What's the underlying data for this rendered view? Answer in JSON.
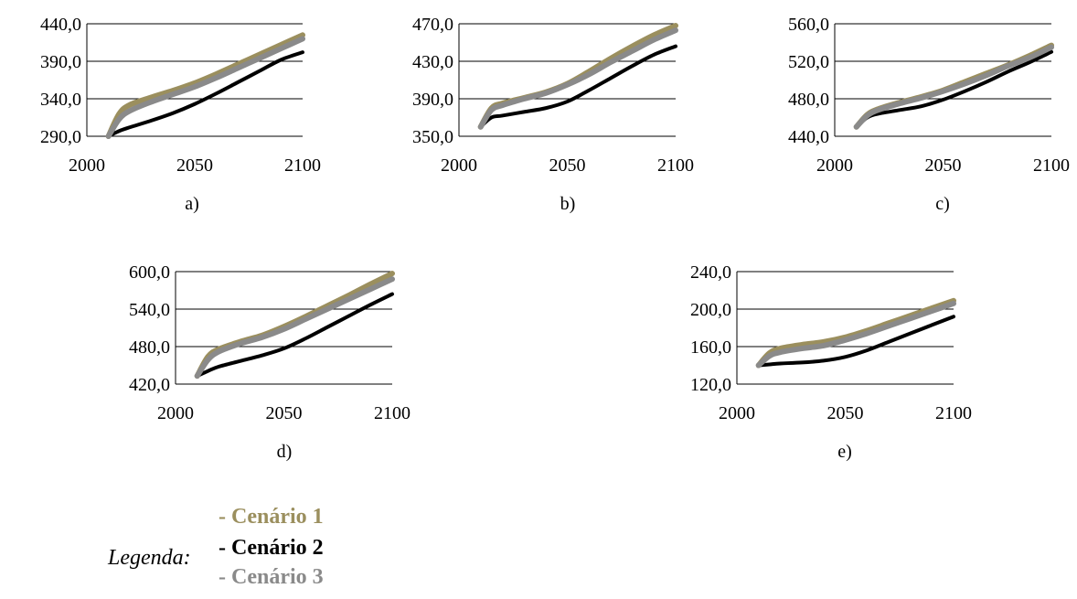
{
  "colors": {
    "cenario1": "#9b8f5e",
    "cenario2": "#000000",
    "cenario3": "#8a8a8a",
    "grid": "#000000"
  },
  "legend": {
    "title": "Legenda:",
    "items": [
      {
        "label": "- Cenário 1",
        "color": "#9b8f5e"
      },
      {
        "label": "- Cenário 2",
        "color": "#000000"
      },
      {
        "label": "- Cenário 3",
        "color": "#8a8a8a"
      }
    ]
  },
  "chart_data": [
    {
      "type": "line",
      "caption": "a)",
      "xlim": [
        2000,
        2100
      ],
      "xticks": [
        "2000",
        "2050",
        "2100"
      ],
      "ylim": [
        290,
        440
      ],
      "yticks": [
        "290,0",
        "340,0",
        "390,0",
        "440,0"
      ],
      "x": [
        2010,
        2015,
        2020,
        2030,
        2040,
        2050,
        2060,
        2070,
        2080,
        2090,
        2100
      ],
      "series": [
        {
          "values": [
            290,
            320,
            332,
            342,
            351,
            361,
            373,
            386,
            399,
            412,
            425
          ]
        },
        {
          "values": [
            290,
            297,
            302,
            311,
            321,
            333,
            347,
            362,
            377,
            392,
            402
          ]
        },
        {
          "values": [
            290,
            313,
            324,
            336,
            346,
            356,
            368,
            381,
            394,
            407,
            420
          ]
        }
      ]
    },
    {
      "type": "line",
      "caption": "b)",
      "xlim": [
        2000,
        2100
      ],
      "xticks": [
        "2000",
        "2050",
        "2100"
      ],
      "ylim": [
        350,
        470
      ],
      "yticks": [
        "350,0",
        "390,0",
        "430,0",
        "470,0"
      ],
      "x": [
        2010,
        2015,
        2020,
        2030,
        2040,
        2050,
        2060,
        2070,
        2080,
        2090,
        2100
      ],
      "series": [
        {
          "values": [
            360,
            380,
            385,
            391,
            397,
            406,
            419,
            433,
            446,
            458,
            468
          ]
        },
        {
          "values": [
            360,
            370,
            372,
            376,
            380,
            387,
            399,
            412,
            425,
            437,
            446
          ]
        },
        {
          "values": [
            360,
            378,
            383,
            390,
            396,
            405,
            416,
            429,
            441,
            453,
            463
          ]
        }
      ]
    },
    {
      "type": "line",
      "caption": "c)",
      "xlim": [
        2000,
        2100
      ],
      "xticks": [
        "2000",
        "2050",
        "2100"
      ],
      "ylim": [
        440,
        560
      ],
      "yticks": [
        "440,0",
        "480,0",
        "520,0",
        "560,0"
      ],
      "x": [
        2010,
        2015,
        2020,
        2030,
        2040,
        2050,
        2060,
        2070,
        2080,
        2090,
        2100
      ],
      "series": [
        {
          "values": [
            450,
            463,
            469,
            476,
            482,
            489,
            498,
            507,
            516,
            526,
            537
          ]
        },
        {
          "values": [
            450,
            460,
            464,
            468,
            472,
            479,
            488,
            498,
            509,
            519,
            530
          ]
        },
        {
          "values": [
            450,
            462,
            468,
            475,
            481,
            488,
            496,
            505,
            515,
            524,
            535
          ]
        }
      ]
    },
    {
      "type": "line",
      "caption": "d)",
      "xlim": [
        2000,
        2100
      ],
      "xticks": [
        "2000",
        "2050",
        "2100"
      ],
      "ylim": [
        420,
        600
      ],
      "yticks": [
        "420,0",
        "480,0",
        "540,0",
        "600,0"
      ],
      "x": [
        2010,
        2015,
        2020,
        2030,
        2040,
        2050,
        2060,
        2070,
        2080,
        2090,
        2100
      ],
      "series": [
        {
          "values": [
            433,
            464,
            476,
            488,
            498,
            512,
            528,
            545,
            562,
            580,
            597
          ]
        },
        {
          "values": [
            433,
            441,
            448,
            457,
            466,
            477,
            493,
            511,
            529,
            547,
            564
          ]
        },
        {
          "values": [
            433,
            459,
            472,
            485,
            495,
            508,
            524,
            540,
            556,
            572,
            588
          ]
        }
      ]
    },
    {
      "type": "line",
      "caption": "e)",
      "xlim": [
        2000,
        2100
      ],
      "xticks": [
        "2000",
        "2050",
        "2100"
      ],
      "ylim": [
        120,
        240
      ],
      "yticks": [
        "120,0",
        "160,0",
        "200,0",
        "240,0"
      ],
      "x": [
        2010,
        2015,
        2020,
        2030,
        2040,
        2050,
        2060,
        2070,
        2080,
        2090,
        2100
      ],
      "series": [
        {
          "values": [
            140,
            153,
            158,
            162,
            165,
            170,
            177,
            185,
            193,
            201,
            209
          ]
        },
        {
          "values": [
            140,
            141,
            142,
            143,
            145,
            149,
            156,
            165,
            174,
            183,
            192
          ]
        },
        {
          "values": [
            140,
            150,
            154,
            158,
            161,
            167,
            174,
            182,
            190,
            198,
            206
          ]
        }
      ]
    }
  ]
}
